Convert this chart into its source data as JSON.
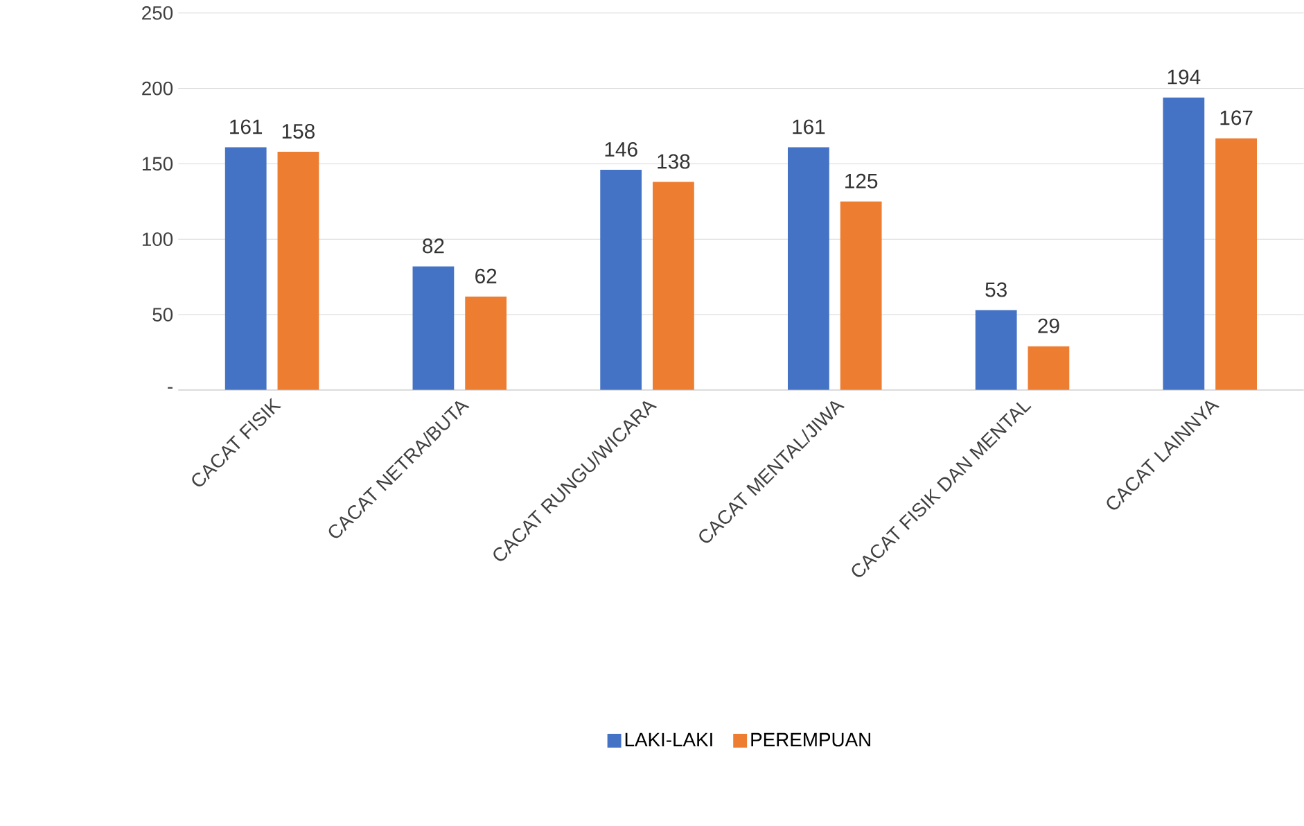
{
  "chart_data": {
    "type": "bar",
    "categories": [
      "CACAT FISIK",
      "CACAT NETRA/BUTA",
      "CACAT RUNGU/WICARA",
      "CACAT MENTAL/JIWA",
      "CACAT FISIK DAN MENTAL",
      "CACAT LAINNYA"
    ],
    "series": [
      {
        "name": "LAKI-LAKI",
        "color": "#4472c4",
        "values": [
          161,
          82,
          146,
          161,
          53,
          194
        ]
      },
      {
        "name": "PEREMPUAN",
        "color": "#ed7d31",
        "values": [
          158,
          62,
          138,
          125,
          29,
          167
        ]
      }
    ],
    "ylim": [
      0,
      250
    ],
    "yticks": [
      {
        "value": 0,
        "label": "-"
      },
      50,
      100,
      150,
      200,
      250
    ],
    "grid": "y",
    "legend": "bottom",
    "data_labels": true
  }
}
